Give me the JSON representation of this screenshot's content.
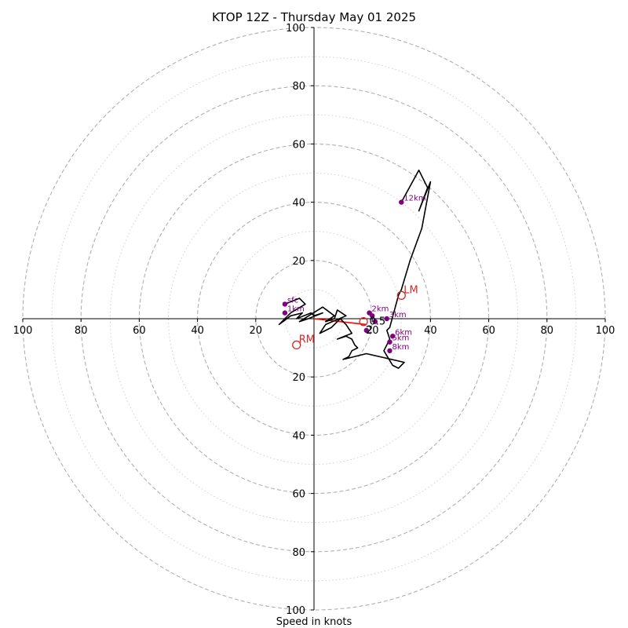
{
  "chart_data": {
    "type": "hodograph",
    "title": "KTOP 12Z - Thursday May 01 2025",
    "xlabel": "Speed in knots",
    "units": "knots",
    "range": [
      -100,
      100
    ],
    "rings_major": [
      20,
      40,
      60,
      80,
      100
    ],
    "rings_minor": [
      10,
      30,
      50,
      70,
      90
    ],
    "x_ticks": [
      {
        "value": -100,
        "label": "100"
      },
      {
        "value": -80,
        "label": "80"
      },
      {
        "value": -60,
        "label": "60"
      },
      {
        "value": -40,
        "label": "40"
      },
      {
        "value": -20,
        "label": "20"
      },
      {
        "value": 20,
        "label": "20"
      },
      {
        "value": 40,
        "label": "40"
      },
      {
        "value": 60,
        "label": "60"
      },
      {
        "value": 80,
        "label": "80"
      },
      {
        "value": 100,
        "label": "100"
      }
    ],
    "y_ticks": [
      {
        "value": 100,
        "label": "100"
      },
      {
        "value": 80,
        "label": "80"
      },
      {
        "value": 60,
        "label": "60"
      },
      {
        "value": 40,
        "label": "40"
      },
      {
        "value": 20,
        "label": "20"
      },
      {
        "value": -20,
        "label": "20"
      },
      {
        "value": -40,
        "label": "40"
      },
      {
        "value": -60,
        "label": "60"
      },
      {
        "value": -80,
        "label": "80"
      },
      {
        "value": -100,
        "label": "100"
      }
    ],
    "hodograph_trace": {
      "color": "#000000",
      "points": [
        [
          -10,
          5
        ],
        [
          -5,
          7
        ],
        [
          -3,
          5
        ],
        [
          -8,
          2
        ],
        [
          -12,
          -2
        ],
        [
          -8,
          1
        ],
        [
          -4,
          2
        ],
        [
          -6,
          0
        ],
        [
          -1,
          2
        ],
        [
          0,
          1
        ],
        [
          3,
          2
        ],
        [
          -2,
          0
        ],
        [
          -5,
          -1
        ],
        [
          3,
          4
        ],
        [
          7,
          1
        ],
        [
          4,
          -1
        ],
        [
          7,
          0
        ],
        [
          8,
          3
        ],
        [
          11,
          1
        ],
        [
          4,
          -2
        ],
        [
          2,
          -5
        ],
        [
          6,
          -3
        ],
        [
          9,
          0
        ],
        [
          11,
          -2
        ],
        [
          13,
          -5
        ],
        [
          8,
          -7
        ],
        [
          11,
          -6
        ],
        [
          13,
          -7
        ],
        [
          14,
          -9
        ],
        [
          15,
          -10
        ],
        [
          13,
          -11
        ],
        [
          12,
          -13
        ],
        [
          10,
          -14
        ],
        [
          18,
          -12
        ],
        [
          31,
          -15
        ],
        [
          29,
          -17
        ],
        [
          27,
          -16
        ],
        [
          24,
          -11
        ],
        [
          26,
          -7
        ],
        [
          25,
          -4
        ],
        [
          26,
          -3
        ],
        [
          29,
          8
        ],
        [
          30,
          10
        ],
        [
          33,
          20
        ],
        [
          37,
          31
        ],
        [
          40,
          47
        ],
        [
          36,
          37
        ],
        [
          39,
          45
        ],
        [
          36,
          51
        ],
        [
          30,
          40
        ]
      ]
    },
    "height_markers": [
      {
        "label": "sfc",
        "u": -10,
        "v": 5
      },
      {
        "label": "1km",
        "u": -10,
        "v": 2
      },
      {
        "label": "2km",
        "u": 19,
        "v": 2
      },
      {
        "label": "3km",
        "u": 25,
        "v": 0
      },
      {
        "label": "5km",
        "u": 26,
        "v": -8
      },
      {
        "label": "6km",
        "u": 27,
        "v": -6
      },
      {
        "label": "8km",
        "u": 26,
        "v": -11
      },
      {
        "label": "12km",
        "u": 30,
        "v": 40
      }
    ],
    "extra_markers": [
      {
        "label": "",
        "u": 18,
        "v": -4
      },
      {
        "label": "",
        "u": 20,
        "v": 1
      },
      {
        "label": "",
        "u": 21,
        "v": -1
      }
    ],
    "storm_motion": [
      {
        "label": "LM",
        "u": 30,
        "v": 8
      },
      {
        "label": "RM",
        "u": -6,
        "v": -9
      },
      {
        "label": "",
        "u": 17,
        "v": -1
      }
    ],
    "shear_vector": {
      "color": "#ff0000",
      "from": [
        0,
        0
      ],
      "to": [
        18,
        -2
      ]
    },
    "small_labels": [
      {
        "label": "2",
        "u": 18,
        "v": -5
      },
      {
        "label": "0.5",
        "u": 19,
        "v": -2
      }
    ],
    "colors": {
      "trace": "#000000",
      "markers": "#800080",
      "storm": "#d62728",
      "grid": "#b0b0b0"
    }
  }
}
